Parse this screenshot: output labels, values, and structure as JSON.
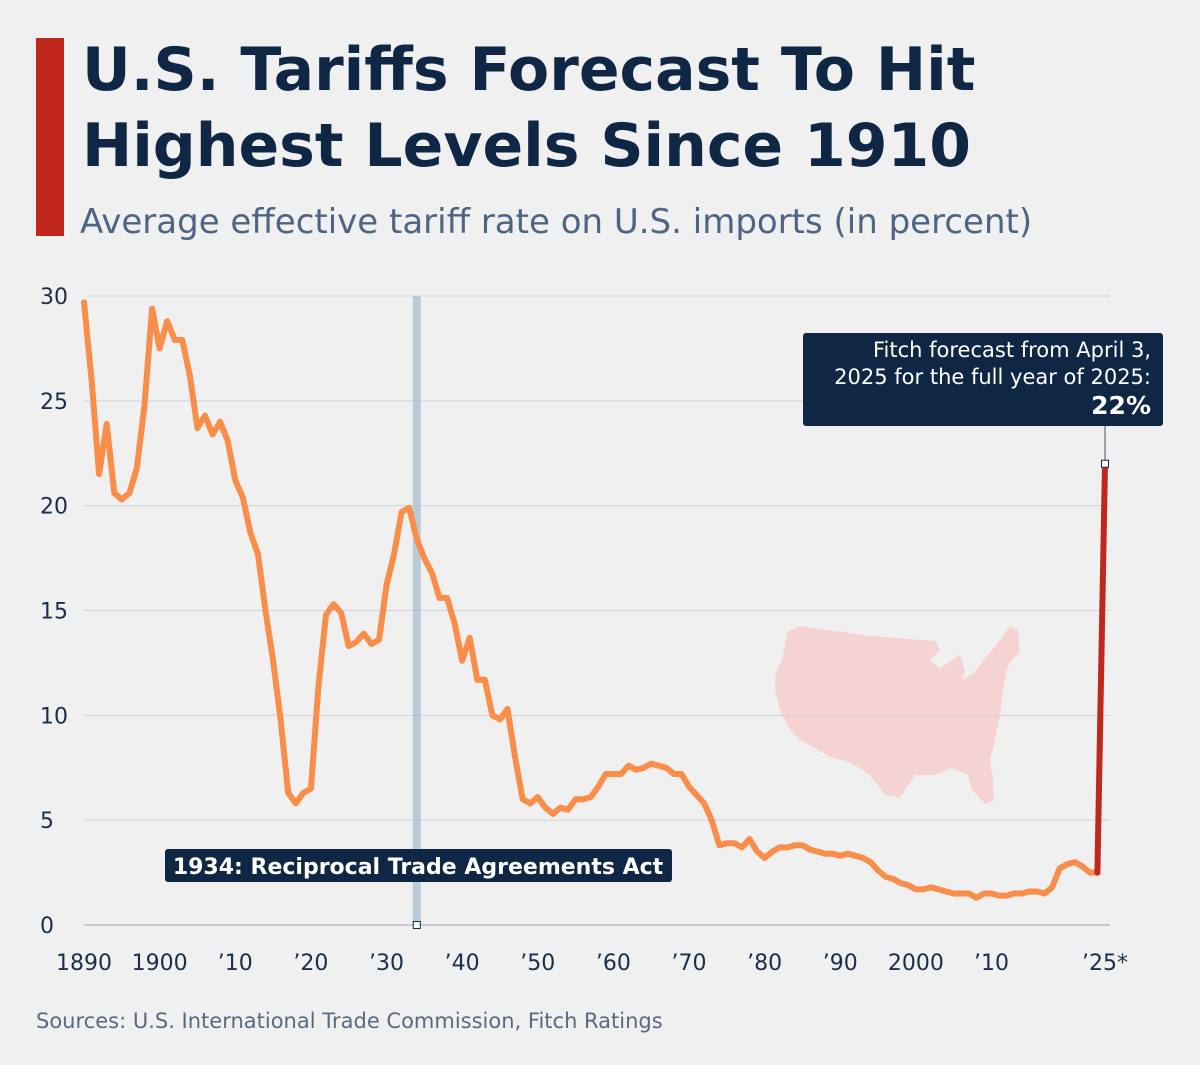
{
  "chart_data": {
    "type": "line",
    "title": [
      "U.S. Tariffs Forecast To Hit",
      "Highest Levels Since 1910"
    ],
    "subtitle": "Average effective tariff rate on U.S. imports (in percent)",
    "source": "Sources: U.S. International Trade Commission, Fitch Ratings",
    "x": [
      1890,
      1891,
      1892,
      1893,
      1894,
      1895,
      1896,
      1897,
      1898,
      1899,
      1900,
      1901,
      1902,
      1903,
      1904,
      1905,
      1906,
      1907,
      1908,
      1909,
      1910,
      1911,
      1912,
      1913,
      1914,
      1915,
      1916,
      1917,
      1918,
      1919,
      1920,
      1921,
      1922,
      1923,
      1924,
      1925,
      1926,
      1927,
      1928,
      1929,
      1930,
      1931,
      1932,
      1933,
      1934,
      1935,
      1936,
      1937,
      1938,
      1939,
      1940,
      1941,
      1942,
      1943,
      1944,
      1945,
      1946,
      1947,
      1948,
      1949,
      1950,
      1951,
      1952,
      1953,
      1954,
      1955,
      1956,
      1957,
      1958,
      1959,
      1960,
      1961,
      1962,
      1963,
      1964,
      1965,
      1966,
      1967,
      1968,
      1969,
      1970,
      1971,
      1972,
      1973,
      1974,
      1975,
      1976,
      1977,
      1978,
      1979,
      1980,
      1981,
      1982,
      1983,
      1984,
      1985,
      1986,
      1987,
      1988,
      1989,
      1990,
      1991,
      1992,
      1993,
      1994,
      1995,
      1996,
      1997,
      1998,
      1999,
      2000,
      2001,
      2002,
      2003,
      2004,
      2005,
      2006,
      2007,
      2008,
      2009,
      2010,
      2011,
      2012,
      2013,
      2014,
      2015,
      2016,
      2017,
      2018,
      2019,
      2020,
      2021,
      2022,
      2023,
      2024
    ],
    "series": [
      {
        "color": "#f98d4a",
        "values": [
          29.7,
          26,
          21.5,
          23.9,
          20.6,
          20.3,
          20.6,
          21.8,
          24.8,
          29.4,
          27.5,
          28.8,
          27.9,
          27.9,
          26.2,
          23.7,
          24.3,
          23.4,
          24.0,
          23.1,
          21.2,
          20.4,
          18.7,
          17.7,
          15.0,
          12.6,
          9.8,
          6.3,
          5.8,
          6.3,
          6.5,
          11.4,
          14.8,
          15.3,
          14.9,
          13.3,
          13.5,
          13.9,
          13.4,
          13.6,
          16.2,
          17.7,
          19.7,
          19.9,
          18.4,
          17.5,
          16.8,
          15.6,
          15.6,
          14.4,
          12.6,
          13.7,
          11.7,
          11.7,
          10.0,
          9.8,
          10.3,
          8.0,
          6.0,
          5.8,
          6.1,
          5.6,
          5.3,
          5.6,
          5.5,
          6.0,
          6.0,
          6.1,
          6.6,
          7.2,
          7.2,
          7.2,
          7.6,
          7.4,
          7.5,
          7.7,
          7.6,
          7.5,
          7.2,
          7.2,
          6.6,
          6.2,
          5.8,
          5.0,
          3.8,
          3.9,
          3.9,
          3.7,
          4.1,
          3.5,
          3.2,
          3.5,
          3.7,
          3.7,
          3.8,
          3.8,
          3.6,
          3.5,
          3.4,
          3.4,
          3.3,
          3.4,
          3.3,
          3.2,
          3.0,
          2.6,
          2.3,
          2.2,
          2.0,
          1.9,
          1.7,
          1.7,
          1.8,
          1.7,
          1.6,
          1.5,
          1.5,
          1.5,
          1.3,
          1.5,
          1.5,
          1.4,
          1.4,
          1.5,
          1.5,
          1.6,
          1.6,
          1.5,
          1.8,
          2.7,
          2.9,
          3.0,
          2.8,
          2.5,
          2.5
        ]
      },
      {
        "color": "#c0281e",
        "x": [
          2024,
          2025
        ],
        "values": [
          2.5,
          22
        ],
        "value_labels": [
          null,
          "22%"
        ]
      }
    ],
    "xlim": [
      1890,
      2025
    ],
    "xticks": [
      1890,
      1900,
      {
        "value": 1910,
        "label": "’10"
      },
      {
        "value": 1920,
        "label": "’20"
      },
      {
        "value": 1930,
        "label": "’30"
      },
      {
        "value": 1940,
        "label": "’40"
      },
      {
        "value": 1950,
        "label": "’50"
      },
      {
        "value": 1960,
        "label": "’60"
      },
      {
        "value": 1970,
        "label": "’70"
      },
      {
        "value": 1980,
        "label": "’80"
      },
      {
        "value": 1990,
        "label": "’90"
      },
      2000,
      {
        "value": 2010,
        "label": "’10"
      },
      {
        "value": 2025,
        "label": "’25*"
      }
    ],
    "ylim": [
      0,
      30
    ],
    "yticks": [
      0,
      5,
      10,
      15,
      20,
      25,
      30
    ],
    "grid": true,
    "annotations": [
      {
        "x": 1934,
        "text": "1934: Reciprocal Trade Agreements Act"
      },
      {
        "x": 2025,
        "lines": [
          "Fitch forecast from April 3,",
          "2025 for the full year of 2025:"
        ]
      }
    ]
  }
}
